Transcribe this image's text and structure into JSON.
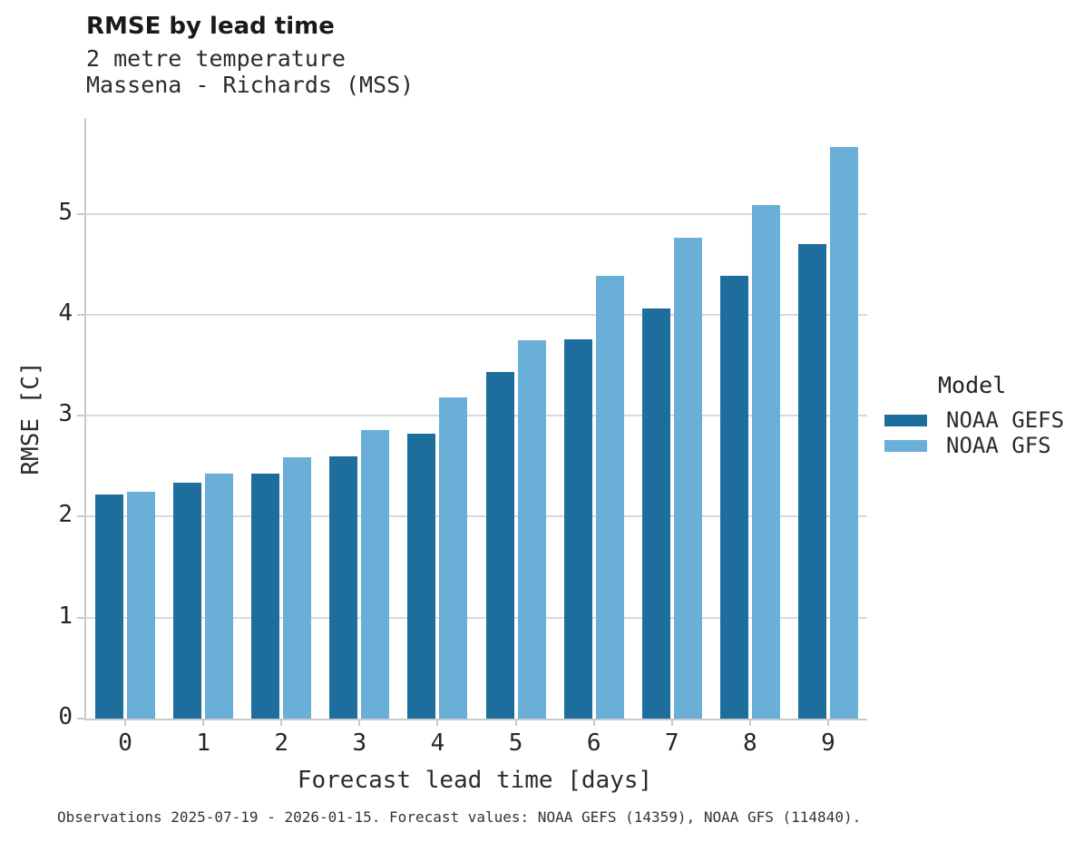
{
  "chart_data": {
    "type": "bar",
    "title": "RMSE by lead time",
    "subtitle_lines": [
      "2 metre temperature",
      "Massena - Richards (MSS)"
    ],
    "xlabel": "Forecast lead time [days]",
    "ylabel": "RMSE [C]",
    "categories": [
      "0",
      "1",
      "2",
      "3",
      "4",
      "5",
      "6",
      "7",
      "8",
      "9"
    ],
    "series": [
      {
        "name": "NOAA GEFS",
        "color": "#1d6e9c",
        "values": [
          2.22,
          2.34,
          2.43,
          2.6,
          2.82,
          3.43,
          3.76,
          4.06,
          4.39,
          4.7
        ]
      },
      {
        "name": "NOAA GFS",
        "color": "#69afd8",
        "values": [
          2.25,
          2.43,
          2.59,
          2.86,
          3.18,
          3.75,
          4.39,
          4.76,
          5.09,
          5.66
        ]
      }
    ],
    "ylim": [
      0,
      5.95
    ],
    "yticks": [
      0,
      1,
      2,
      3,
      4,
      5
    ],
    "grid": "horizontal",
    "legend": {
      "title": "Model",
      "position": "right-of-plot"
    }
  },
  "caption": "Observations 2025-07-19 - 2026-01-15. Forecast values: NOAA GEFS (14359), NOAA GFS (114840).",
  "colors": {
    "spine": "#c9c9c9",
    "gridline": "#d9d9d9",
    "text": "#2b2b2b",
    "title": "#1a1a1a"
  }
}
